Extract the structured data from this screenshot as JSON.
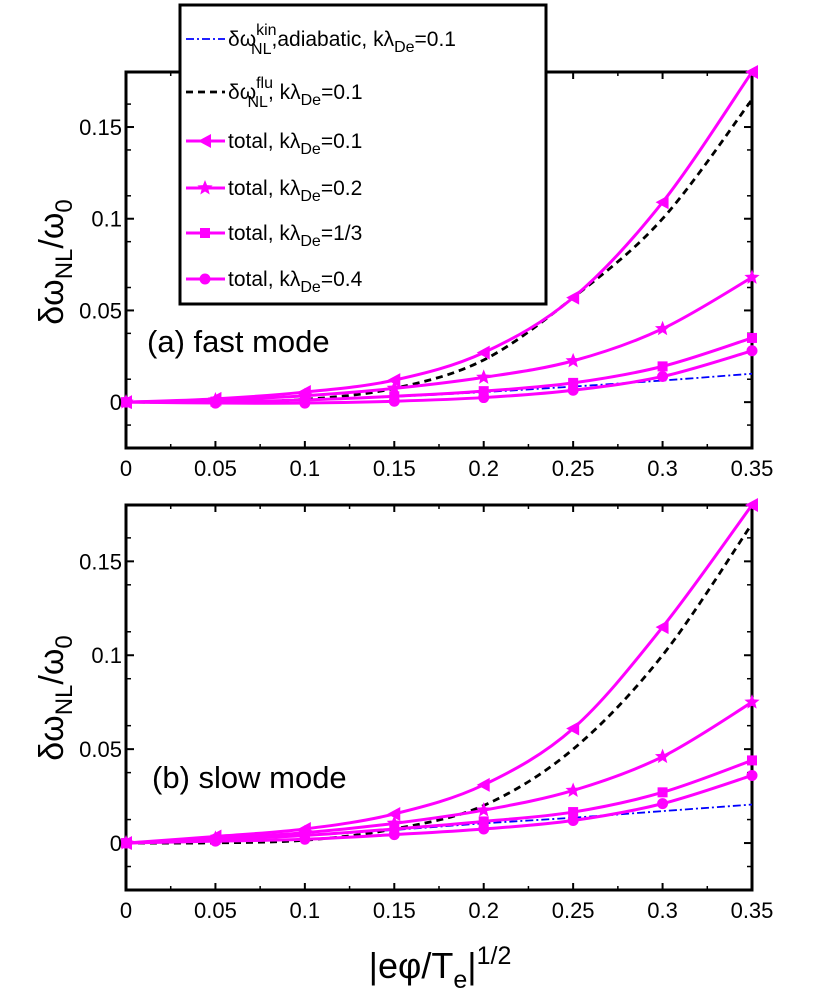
{
  "colors": {
    "kin": "#0000ff",
    "flu": "#000000",
    "total": "#ff00ff"
  },
  "axis_labels": {
    "y_main": "δω",
    "y_sub": "NL",
    "y_slash": "/ω",
    "y_sub2": "0",
    "x_main": "|eφ/T",
    "x_sub": "e",
    "x_bar": "|",
    "x_sup": "1/2"
  },
  "legend": [
    {
      "key": "kin",
      "pre": "δω",
      "sup": "kin",
      "sub": "NL",
      "post": ",adiabatic, kλ",
      "sub2": "De",
      "post2": "=0.1"
    },
    {
      "key": "flu",
      "pre": "δω",
      "sup": "flu",
      "sub": "NL",
      "post": ", kλ",
      "sub2": "De",
      "post2": "=0.1"
    },
    {
      "key": "t01",
      "pre": "total, kλ",
      "sup": "",
      "sub": "De",
      "post": "=0.1",
      "sub2": "",
      "post2": ""
    },
    {
      "key": "t02",
      "pre": "total, kλ",
      "sup": "",
      "sub": "De",
      "post": "=0.2",
      "sub2": "",
      "post2": ""
    },
    {
      "key": "t033",
      "pre": "total, kλ",
      "sup": "",
      "sub": "De",
      "post": "=1/3",
      "sub2": "",
      "post2": ""
    },
    {
      "key": "t04",
      "pre": "total, kλ",
      "sup": "",
      "sub": "De",
      "post": "=0.4",
      "sub2": "",
      "post2": ""
    }
  ],
  "chart_data": [
    {
      "type": "line",
      "annotation": "(a) fast mode",
      "xlabel": "|eφ/Te|^1/2",
      "ylabel": "δω_NL/ω_0",
      "xlim": [
        0,
        0.35
      ],
      "ylim": [
        -0.025,
        0.18
      ],
      "xticks": [
        0,
        0.05,
        0.1,
        0.15,
        0.2,
        0.25,
        0.3,
        0.35
      ],
      "xtick_labels": [
        "0",
        "0.05",
        "0.1",
        "0.15",
        "0.2",
        "0.25",
        "0.3",
        "0.35"
      ],
      "yticks": [
        0,
        0.05,
        0.1,
        0.15
      ],
      "ytick_labels": [
        "0",
        "0.05",
        "0.1",
        "0.15"
      ],
      "series": [
        {
          "key": "kin",
          "name": "δω_NL^kin, adiabatic, kλ_De=0.1",
          "style": "dashdot",
          "marker": "none",
          "x": [
            0,
            0.05,
            0.1,
            0.15,
            0.2,
            0.25,
            0.3,
            0.35
          ],
          "y": [
            0,
            0.0003,
            0.0012,
            0.003,
            0.0055,
            0.0085,
            0.0118,
            0.0155
          ]
        },
        {
          "key": "flu",
          "name": "δω_NL^flu, kλ_De=0.1",
          "style": "dashed",
          "marker": "none",
          "x": [
            0,
            0.05,
            0.1,
            0.15,
            0.2,
            0.25,
            0.3,
            0.35
          ],
          "y": [
            0,
            0.0001,
            0.0015,
            0.0075,
            0.023,
            0.057,
            0.1,
            0.165
          ]
        },
        {
          "key": "t01",
          "name": "total, kλ_De=0.1",
          "style": "solid",
          "marker": "triangle-left",
          "x": [
            0,
            0.05,
            0.1,
            0.15,
            0.2,
            0.25,
            0.3,
            0.35
          ],
          "y": [
            0,
            0.0018,
            0.0055,
            0.012,
            0.027,
            0.057,
            0.109,
            0.18
          ]
        },
        {
          "key": "t02",
          "name": "total, kλ_De=0.2",
          "style": "solid",
          "marker": "star",
          "x": [
            0,
            0.05,
            0.1,
            0.15,
            0.2,
            0.25,
            0.3,
            0.35
          ],
          "y": [
            0,
            0.0012,
            0.0035,
            0.0075,
            0.0135,
            0.0225,
            0.04,
            0.068
          ]
        },
        {
          "key": "t033",
          "name": "total, kλ_De=1/3",
          "style": "solid",
          "marker": "square",
          "x": [
            0,
            0.05,
            0.1,
            0.15,
            0.2,
            0.25,
            0.3,
            0.35
          ],
          "y": [
            0,
            0.0003,
            0.0012,
            0.0032,
            0.006,
            0.0105,
            0.0195,
            0.035
          ]
        },
        {
          "key": "t04",
          "name": "total, kλ_De=0.4",
          "style": "solid",
          "marker": "circle",
          "x": [
            0,
            0.05,
            0.1,
            0.15,
            0.2,
            0.25,
            0.3,
            0.35
          ],
          "y": [
            0,
            -0.0005,
            -0.0005,
            0.0005,
            0.0025,
            0.0065,
            0.014,
            0.028
          ]
        }
      ]
    },
    {
      "type": "line",
      "annotation": "(b) slow mode",
      "xlabel": "|eφ/Te|^1/2",
      "ylabel": "δω_NL/ω_0",
      "xlim": [
        0,
        0.35
      ],
      "ylim": [
        -0.025,
        0.18
      ],
      "xticks": [
        0,
        0.05,
        0.1,
        0.15,
        0.2,
        0.25,
        0.3,
        0.35
      ],
      "xtick_labels": [
        "0",
        "0.05",
        "0.1",
        "0.15",
        "0.2",
        "0.25",
        "0.3",
        "0.35"
      ],
      "yticks": [
        0,
        0.05,
        0.1,
        0.15
      ],
      "ytick_labels": [
        "0",
        "0.05",
        "0.1",
        "0.15"
      ],
      "series": [
        {
          "key": "kin",
          "name": "δω_NL^kin, adiabatic, kλ_De=0.1",
          "style": "dashdot",
          "marker": "none",
          "x": [
            0,
            0.05,
            0.1,
            0.15,
            0.2,
            0.25,
            0.3,
            0.35
          ],
          "y": [
            0,
            0.0015,
            0.004,
            0.007,
            0.0105,
            0.0135,
            0.017,
            0.0205
          ]
        },
        {
          "key": "flu",
          "name": "δω_NL^flu, kλ_De=0.1",
          "style": "dashed",
          "marker": "none",
          "x": [
            0,
            0.05,
            0.1,
            0.15,
            0.2,
            0.25,
            0.3,
            0.35
          ],
          "y": [
            0,
            0.0001,
            0.0015,
            0.0075,
            0.02,
            0.05,
            0.1,
            0.17
          ]
        },
        {
          "key": "t01",
          "name": "total, kλ_De=0.1",
          "style": "solid",
          "marker": "triangle-left",
          "x": [
            0,
            0.05,
            0.1,
            0.15,
            0.2,
            0.25,
            0.3,
            0.35
          ],
          "y": [
            0,
            0.0035,
            0.0075,
            0.0155,
            0.031,
            0.061,
            0.115,
            0.18
          ]
        },
        {
          "key": "t02",
          "name": "total, kλ_De=0.2",
          "style": "solid",
          "marker": "star",
          "x": [
            0,
            0.05,
            0.1,
            0.15,
            0.2,
            0.25,
            0.3,
            0.35
          ],
          "y": [
            0,
            0.0025,
            0.0055,
            0.0105,
            0.0175,
            0.028,
            0.046,
            0.075
          ]
        },
        {
          "key": "t033",
          "name": "total, kλ_De=1/3",
          "style": "solid",
          "marker": "square",
          "x": [
            0,
            0.05,
            0.1,
            0.15,
            0.2,
            0.25,
            0.3,
            0.35
          ],
          "y": [
            0,
            0.0018,
            0.004,
            0.0075,
            0.0115,
            0.0165,
            0.027,
            0.044
          ]
        },
        {
          "key": "t04",
          "name": "total, kλ_De=0.4",
          "style": "solid",
          "marker": "circle",
          "x": [
            0,
            0.05,
            0.1,
            0.15,
            0.2,
            0.25,
            0.3,
            0.35
          ],
          "y": [
            0,
            0.001,
            0.002,
            0.0045,
            0.0075,
            0.012,
            0.021,
            0.036
          ]
        }
      ]
    }
  ]
}
